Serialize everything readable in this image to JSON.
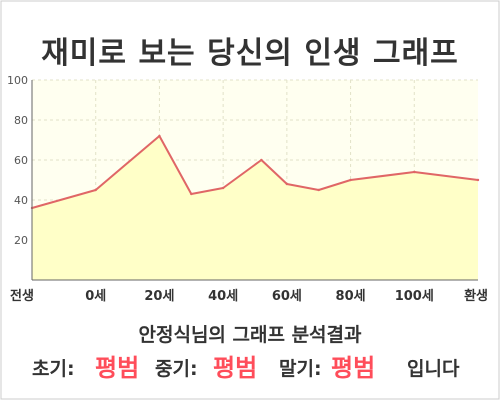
{
  "title": "재미로 보는 당신의 인생 그래프",
  "result_caption": "안정식님의 그래프 분석결과",
  "stages": {
    "early_label": "초기:",
    "early_value": "평범",
    "middle_label": "중기:",
    "middle_value": "평범",
    "late_label": "말기:",
    "late_value": "평범",
    "suffix": "입니다"
  },
  "colors": {
    "line": "#e06666",
    "fill": "#ffffc8",
    "plot_bg": "#fffff0",
    "grid": "#e2e2c8",
    "highlight": "#ff4d5a"
  },
  "chart_data": {
    "type": "area",
    "title": "",
    "xlabel": "",
    "ylabel": "",
    "ylim": [
      0,
      100
    ],
    "yticks": [
      20,
      40,
      60,
      80,
      100
    ],
    "xticks": [
      {
        "x": 0,
        "label": "전생"
      },
      {
        "x": 1,
        "label": "0세"
      },
      {
        "x": 2,
        "label": "20세"
      },
      {
        "x": 3,
        "label": "40세"
      },
      {
        "x": 4,
        "label": "60세"
      },
      {
        "x": 5,
        "label": "80세"
      },
      {
        "x": 6,
        "label": "100세"
      },
      {
        "x": 7,
        "label": "환생"
      }
    ],
    "grid": true,
    "legend": "none",
    "points": [
      {
        "x": 0.0,
        "y": 36
      },
      {
        "x": 1.0,
        "y": 45
      },
      {
        "x": 2.0,
        "y": 72
      },
      {
        "x": 2.5,
        "y": 43
      },
      {
        "x": 3.0,
        "y": 46
      },
      {
        "x": 3.6,
        "y": 60
      },
      {
        "x": 4.0,
        "y": 48
      },
      {
        "x": 4.5,
        "y": 45
      },
      {
        "x": 5.0,
        "y": 50
      },
      {
        "x": 6.0,
        "y": 54
      },
      {
        "x": 7.0,
        "y": 50
      }
    ]
  }
}
